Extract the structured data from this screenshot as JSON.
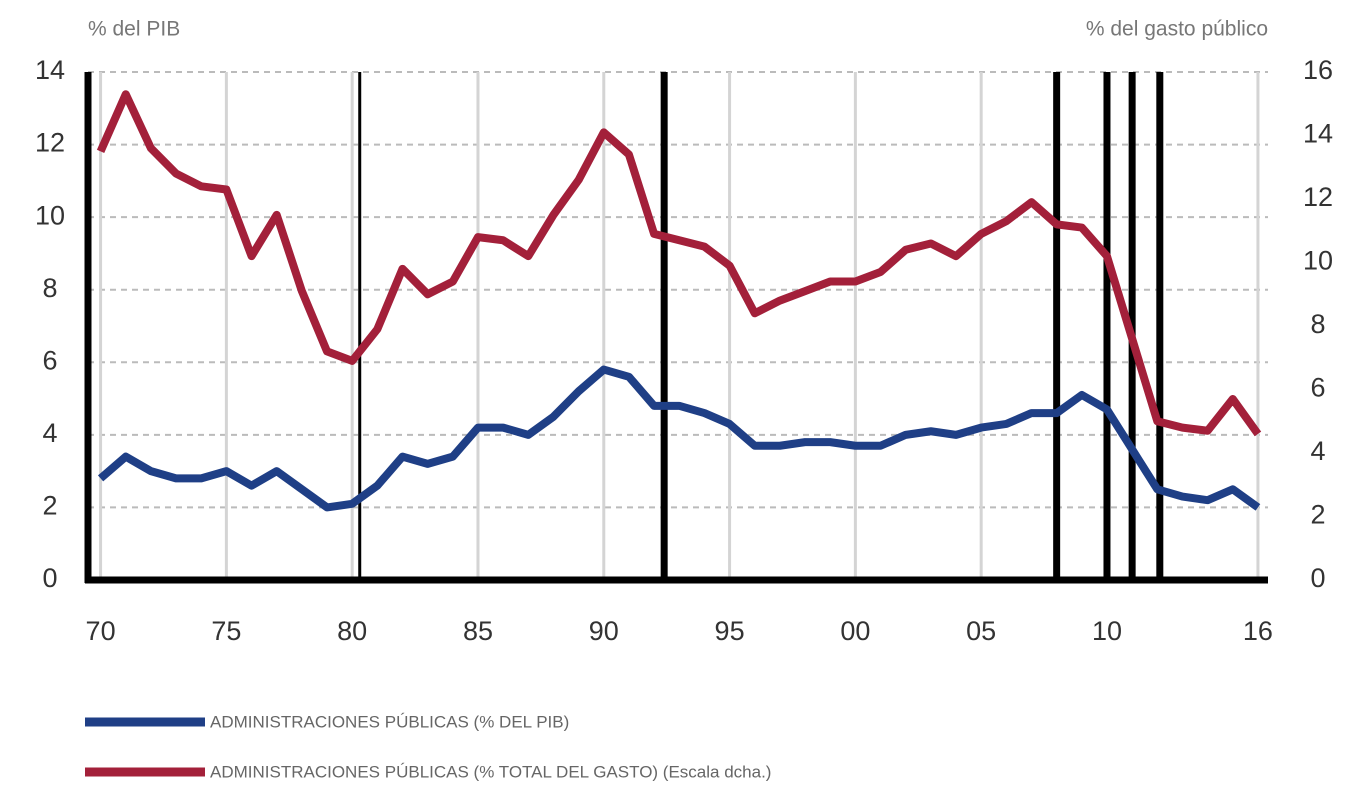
{
  "chart_data": {
    "type": "line",
    "y_axis_label": "% del PIB",
    "y2_axis_label": "% del gasto público",
    "x": [
      1970,
      1971,
      1972,
      1973,
      1974,
      1975,
      1976,
      1977,
      1978,
      1979,
      1980,
      1981,
      1982,
      1983,
      1984,
      1985,
      1986,
      1987,
      1988,
      1989,
      1990,
      1991,
      1992,
      1993,
      1994,
      1995,
      1996,
      1997,
      1998,
      1999,
      2000,
      2001,
      2002,
      2003,
      2004,
      2005,
      2006,
      2007,
      2008,
      2009,
      2010,
      2011,
      2012,
      2013,
      2014,
      2015,
      2016
    ],
    "series": [
      {
        "name": "ADMINISTRACIONES PÚBLICAS (% DEL PIB)",
        "color": "#1f3f86",
        "axis": "y",
        "values": [
          2.8,
          3.4,
          3.0,
          2.8,
          2.8,
          3.0,
          2.6,
          3.0,
          2.5,
          2.0,
          2.1,
          2.6,
          3.4,
          3.2,
          3.4,
          4.2,
          4.2,
          4.0,
          4.5,
          5.2,
          5.8,
          5.6,
          4.8,
          4.8,
          4.6,
          4.3,
          3.7,
          3.7,
          3.8,
          3.8,
          3.7,
          3.7,
          4.0,
          4.1,
          4.0,
          4.2,
          4.3,
          4.6,
          4.6,
          5.1,
          4.7,
          3.6,
          2.5,
          2.3,
          2.2,
          2.5,
          2.0
        ]
      },
      {
        "name": "ADMINISTRACIONES PÚBLICAS (% TOTAL DEL GASTO) (Escala dcha.)",
        "color": "#a3203a",
        "axis": "y2",
        "values": [
          13.5,
          15.3,
          13.6,
          12.8,
          12.4,
          12.3,
          10.2,
          11.5,
          9.1,
          7.2,
          6.9,
          7.9,
          9.8,
          9.0,
          9.4,
          10.8,
          10.7,
          10.2,
          11.5,
          12.6,
          14.1,
          13.4,
          10.9,
          10.7,
          10.5,
          9.9,
          8.4,
          8.8,
          9.1,
          9.4,
          9.4,
          9.7,
          10.4,
          10.6,
          10.2,
          10.9,
          11.3,
          11.9,
          11.2,
          11.1,
          10.2,
          7.6,
          5.0,
          4.8,
          4.7,
          5.7,
          4.6
        ]
      }
    ],
    "xlim": [
      1969.5,
      2016.4
    ],
    "xticks": [
      {
        "value": 1970,
        "label": "70"
      },
      {
        "value": 1975,
        "label": "75"
      },
      {
        "value": 1980,
        "label": "80"
      },
      {
        "value": 1985,
        "label": "85"
      },
      {
        "value": 1990,
        "label": "90"
      },
      {
        "value": 1995,
        "label": "95"
      },
      {
        "value": 2000,
        "label": "00"
      },
      {
        "value": 2005,
        "label": "05"
      },
      {
        "value": 2010,
        "label": "10"
      },
      {
        "value": 2016,
        "label": "16"
      }
    ],
    "ylim": [
      0,
      14
    ],
    "yticks": [
      0,
      2,
      4,
      6,
      8,
      10,
      12,
      14
    ],
    "y2lim": [
      0,
      16
    ],
    "y2ticks": [
      0,
      2,
      4,
      6,
      8,
      10,
      12,
      14,
      16
    ],
    "vertical_lines": [
      1980.3,
      1992.4,
      2008.0,
      2010.0,
      2011.0,
      2012.1
    ],
    "grid": true
  }
}
